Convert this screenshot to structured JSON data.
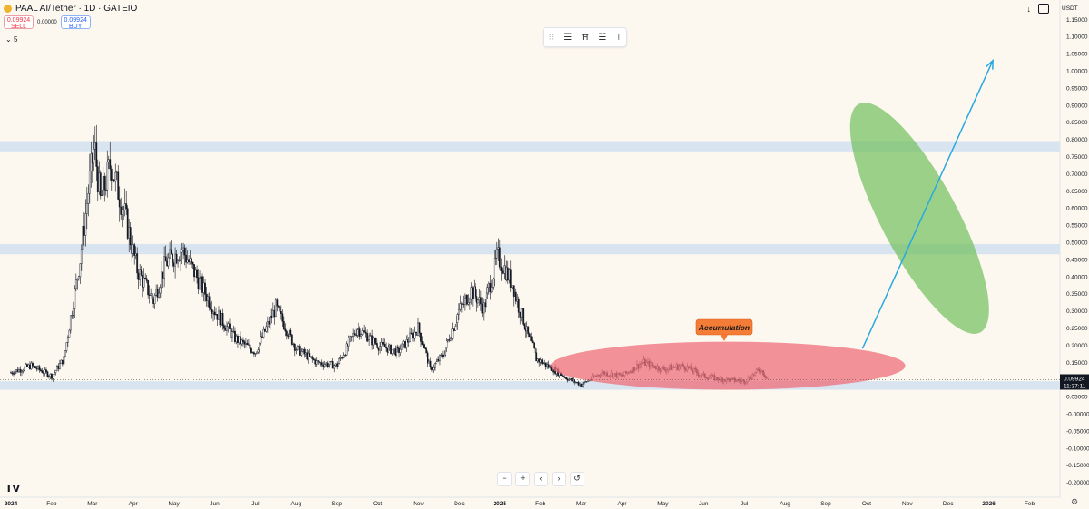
{
  "header": {
    "symbol_line": "PAAL AI/Tether · 1D · GATEIO",
    "sell_price": "0.09924",
    "sell_label": "SELL",
    "spread": "0.00000",
    "buy_price": "0.09924",
    "buy_label": "BUY",
    "volume_label": "5"
  },
  "toolbar_icons": [
    "drag-handle-icon",
    "long-position-icon",
    "date-range-icon",
    "price-range-icon",
    "measure-icon"
  ],
  "currency": "USDT",
  "nav_buttons": [
    "−",
    "+",
    "‹",
    "›",
    "↺"
  ],
  "colors": {
    "background": "#fdf8ef",
    "candle": "#131722",
    "zone_band": "#c9dcf2",
    "accumulation_fill": "#ee6f7a",
    "target_fill": "#6fbf5b",
    "arrow": "#29a8e0",
    "callout": "#f57c36",
    "price_tag": "#131722"
  },
  "chart_data": {
    "type": "candlestick",
    "title": "PAAL AI/Tether · 1D · GATEIO",
    "yaxis": {
      "ticks": [
        "1.15000",
        "1.10000",
        "1.05000",
        "1.00000",
        "0.95000",
        "0.90000",
        "0.85000",
        "0.80000",
        "0.75000",
        "0.70000",
        "0.65000",
        "0.60000",
        "0.55000",
        "0.50000",
        "0.45000",
        "0.40000",
        "0.35000",
        "0.30000",
        "0.25000",
        "0.20000",
        "0.15000",
        "0.10000",
        "0.05000",
        "-0.00000",
        "-0.05000",
        "-0.10000",
        "-0.15000",
        "-0.20000"
      ],
      "ylim": [
        -0.2,
        1.15
      ]
    },
    "xaxis": {
      "labels": [
        "2024",
        "Feb",
        "Mar",
        "Apr",
        "May",
        "Jun",
        "Jul",
        "Aug",
        "Sep",
        "Oct",
        "Nov",
        "Dec",
        "2025",
        "Feb",
        "Mar",
        "Apr",
        "May",
        "Jun",
        "Jul",
        "Aug",
        "Sep",
        "Oct",
        "Nov",
        "Dec",
        "2026",
        "Feb"
      ],
      "bold": [
        "2024",
        "2025",
        "2026"
      ]
    },
    "series_keypoints": [
      {
        "month": 0.0,
        "price": 0.12
      },
      {
        "month": 0.5,
        "price": 0.14
      },
      {
        "month": 1.0,
        "price": 0.11
      },
      {
        "month": 1.3,
        "price": 0.16
      },
      {
        "month": 1.7,
        "price": 0.45
      },
      {
        "month": 1.9,
        "price": 0.65
      },
      {
        "month": 2.05,
        "price": 0.78
      },
      {
        "month": 2.2,
        "price": 0.62
      },
      {
        "month": 2.45,
        "price": 0.73
      },
      {
        "month": 2.8,
        "price": 0.58
      },
      {
        "month": 3.1,
        "price": 0.42
      },
      {
        "month": 3.5,
        "price": 0.33
      },
      {
        "month": 3.8,
        "price": 0.44
      },
      {
        "month": 4.2,
        "price": 0.48
      },
      {
        "month": 4.6,
        "price": 0.39
      },
      {
        "month": 5.0,
        "price": 0.3
      },
      {
        "month": 5.5,
        "price": 0.22
      },
      {
        "month": 6.0,
        "price": 0.18
      },
      {
        "month": 6.5,
        "price": 0.31
      },
      {
        "month": 7.0,
        "price": 0.19
      },
      {
        "month": 7.5,
        "price": 0.15
      },
      {
        "month": 8.0,
        "price": 0.14
      },
      {
        "month": 8.5,
        "price": 0.25
      },
      {
        "month": 9.0,
        "price": 0.2
      },
      {
        "month": 9.5,
        "price": 0.18
      },
      {
        "month": 10.0,
        "price": 0.25
      },
      {
        "month": 10.3,
        "price": 0.13
      },
      {
        "month": 10.6,
        "price": 0.17
      },
      {
        "month": 11.0,
        "price": 0.3
      },
      {
        "month": 11.3,
        "price": 0.36
      },
      {
        "month": 11.6,
        "price": 0.31
      },
      {
        "month": 11.95,
        "price": 0.46
      },
      {
        "month": 12.3,
        "price": 0.38
      },
      {
        "month": 12.6,
        "price": 0.26
      },
      {
        "month": 12.9,
        "price": 0.16
      },
      {
        "month": 13.3,
        "price": 0.13
      },
      {
        "month": 13.7,
        "price": 0.1
      },
      {
        "month": 14.0,
        "price": 0.085
      },
      {
        "month": 14.5,
        "price": 0.12
      },
      {
        "month": 15.0,
        "price": 0.11
      },
      {
        "month": 15.5,
        "price": 0.15
      },
      {
        "month": 16.0,
        "price": 0.13
      },
      {
        "month": 16.5,
        "price": 0.14
      },
      {
        "month": 17.0,
        "price": 0.11
      },
      {
        "month": 17.5,
        "price": 0.1
      },
      {
        "month": 18.0,
        "price": 0.095
      },
      {
        "month": 18.4,
        "price": 0.13
      },
      {
        "month": 18.6,
        "price": 0.0992
      }
    ],
    "horizontal_zones": [
      {
        "low": 0.765,
        "high": 0.795
      },
      {
        "low": 0.465,
        "high": 0.495
      },
      {
        "low": 0.07,
        "high": 0.095
      }
    ],
    "last_price": {
      "value": "0.09924",
      "countdown": "11:37:11"
    },
    "annotations": {
      "callout_text": "Accumulation",
      "accumulation_ellipse": {
        "month_center": 17.6,
        "price_center": 0.14,
        "month_halfwidth": 5.0,
        "price_halfheight": 0.07
      },
      "target_ellipse": {
        "month_center": 22.3,
        "price_center": 0.57,
        "month_halfwidth": 1.1,
        "price_halfheight": 0.41,
        "tilt_deg": -28
      },
      "arrow": {
        "from_month": 20.9,
        "from_price": 0.19,
        "to_month": 24.1,
        "to_price": 1.03
      }
    },
    "grid": false
  }
}
